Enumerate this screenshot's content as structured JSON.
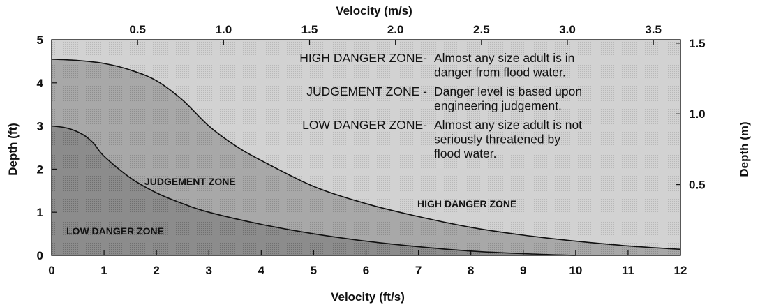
{
  "chart_data": {
    "type": "area",
    "title": "",
    "x_bottom": {
      "label": "Velocity (ft/s)",
      "range": [
        0,
        12
      ],
      "ticks": [
        "0",
        "1",
        "2",
        "3",
        "4",
        "5",
        "6",
        "7",
        "8",
        "9",
        "10",
        "11",
        "12"
      ]
    },
    "x_top": {
      "label": "Velocity (m/s)",
      "range_ft_s": [
        0,
        12
      ],
      "ticks": [
        "0.5",
        "1.0",
        "1.5",
        "2.0",
        "2.5",
        "3.0",
        "3.5"
      ],
      "tick_values_m_s": [
        0.5,
        1.0,
        1.5,
        2.0,
        2.5,
        3.0,
        3.5
      ]
    },
    "y_left": {
      "label": "Depth (ft)",
      "range": [
        0,
        5
      ],
      "ticks": [
        "0",
        "1",
        "2",
        "3",
        "4",
        "5"
      ]
    },
    "y_right": {
      "label": "Depth (m)",
      "ticks": [
        "0.5",
        "1.0",
        "1.5"
      ],
      "tick_values_m": [
        0.5,
        1.0,
        1.5
      ]
    },
    "series": [
      {
        "name": "",
        "x": [
          0,
          0.5,
          1,
          1.5,
          2,
          2.5,
          3,
          3.5,
          4,
          5,
          6,
          7,
          8,
          9,
          10,
          11,
          12
        ],
        "y": [
          4.55,
          4.52,
          4.45,
          4.3,
          4.05,
          3.6,
          3.0,
          2.55,
          2.2,
          1.6,
          1.2,
          0.9,
          0.65,
          0.47,
          0.33,
          0.22,
          0.14
        ]
      },
      {
        "name": "",
        "x": [
          0,
          0.3,
          0.6,
          0.8,
          1,
          1.5,
          2,
          2.5,
          3,
          4,
          5,
          6,
          7,
          8,
          9,
          10
        ],
        "y": [
          3.0,
          2.95,
          2.8,
          2.6,
          2.3,
          1.8,
          1.45,
          1.2,
          1.0,
          0.72,
          0.5,
          0.33,
          0.2,
          0.1,
          0.04,
          0.0
        ]
      }
    ],
    "zones": {
      "high": "HIGH DANGER ZONE",
      "judgement": "JUDGEMENT ZONE",
      "low": "LOW DANGER ZONE"
    },
    "legend": [
      {
        "term": "HIGH DANGER ZONE-",
        "lines": [
          "Almost any size adult is in",
          "danger from flood water."
        ]
      },
      {
        "term": "JUDGEMENT ZONE  -",
        "lines": [
          "Danger level is based upon",
          "engineering judgement."
        ]
      },
      {
        "term": "LOW DANGER ZONE-",
        "lines": [
          "Almost any size adult is not",
          "seriously threatened by",
          "flood water."
        ]
      }
    ],
    "colors": {
      "high": "#d4d4d4",
      "judgement": "#a9a9a9",
      "low": "#888888",
      "line": "#111111"
    }
  }
}
